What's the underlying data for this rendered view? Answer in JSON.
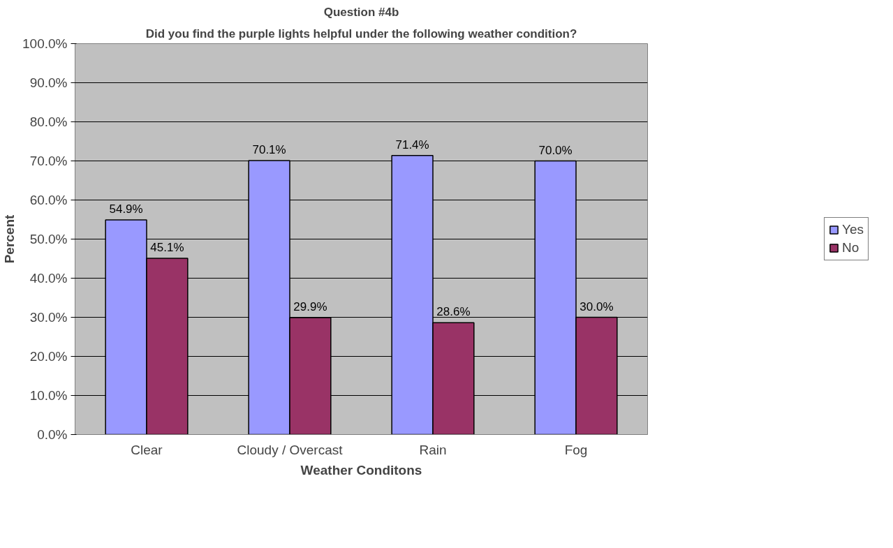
{
  "chart_data": {
    "type": "bar",
    "title": "Question #4b",
    "subtitle": "Did you find the purple lights helpful under the following weather condition?",
    "xlabel": "Weather Conditons",
    "ylabel": "Percent",
    "categories": [
      "Clear",
      "Cloudy / Overcast",
      "Rain",
      "Fog"
    ],
    "series": [
      {
        "name": "Yes",
        "color": "#9999ff",
        "values": [
          54.9,
          70.1,
          71.4,
          70.0
        ],
        "value_labels": [
          "54.9%",
          "70.1%",
          "71.4%",
          "70.0%"
        ]
      },
      {
        "name": "No",
        "color": "#993366",
        "values": [
          45.1,
          29.9,
          28.6,
          30.0
        ],
        "value_labels": [
          "45.1%",
          "29.9%",
          "28.6%",
          "30.0%"
        ]
      }
    ],
    "ylim": [
      0,
      100
    ],
    "yticks": [
      {
        "value": 0,
        "label": "0.0%"
      },
      {
        "value": 10,
        "label": "10.0%"
      },
      {
        "value": 20,
        "label": "20.0%"
      },
      {
        "value": 30,
        "label": "30.0%"
      },
      {
        "value": 40,
        "label": "40.0%"
      },
      {
        "value": 50,
        "label": "50.0%"
      },
      {
        "value": 60,
        "label": "60.0%"
      },
      {
        "value": 70,
        "label": "70.0%"
      },
      {
        "value": 80,
        "label": "80.0%"
      },
      {
        "value": 90,
        "label": "90.0%"
      },
      {
        "value": 100,
        "label": "100.0%"
      }
    ],
    "grid": "y",
    "legend": "right"
  }
}
